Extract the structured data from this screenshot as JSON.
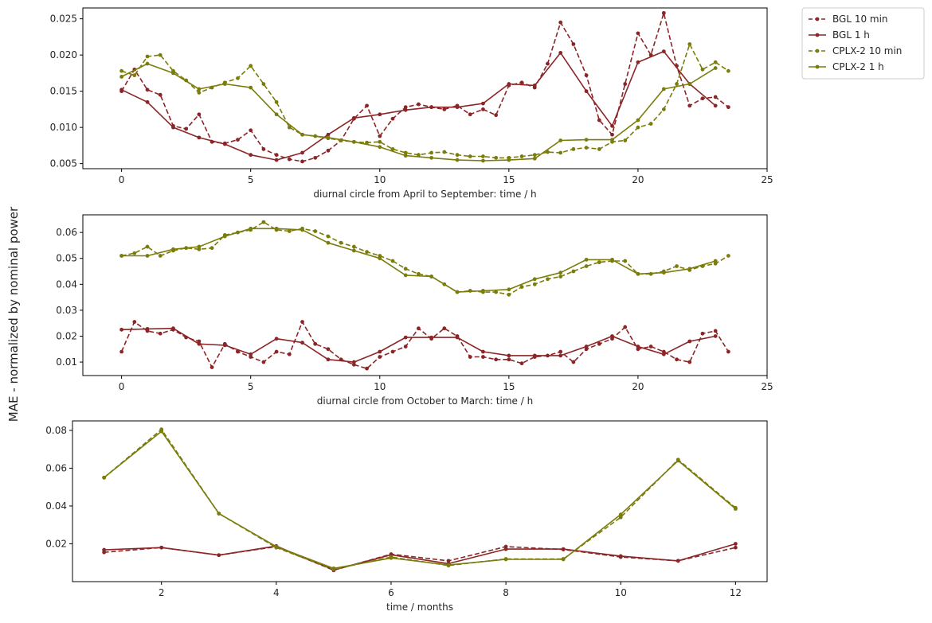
{
  "figure": {
    "ylabel": "MAE - normalized by nominal power",
    "colors": {
      "bgl": "#8b2527",
      "cplx": "#7a7c0b",
      "axis": "#000000",
      "text": "#262626"
    }
  },
  "legend": {
    "entries": [
      {
        "label": "BGL 10 min",
        "series": "bgl",
        "style": "dashed"
      },
      {
        "label": "BGL 1 h",
        "series": "bgl",
        "style": "solid"
      },
      {
        "label": "CPLX-2 10 min",
        "series": "cplx",
        "style": "dashed"
      },
      {
        "label": "CPLX-2 1 h",
        "series": "cplx",
        "style": "solid"
      }
    ]
  },
  "chart_data": [
    {
      "type": "line",
      "title": "",
      "xlabel": "diurnal circle from April to September: time / h",
      "ylabel": "",
      "xlim": [
        -1.5,
        25
      ],
      "ylim": [
        0.0043,
        0.0265
      ],
      "xticks": [
        0,
        5,
        10,
        15,
        20,
        25
      ],
      "yticks": [
        0.005,
        0.01,
        0.015,
        0.02,
        0.025
      ],
      "ytick_labels": [
        "0.005",
        "0.010",
        "0.015",
        "0.020",
        "0.025"
      ],
      "series": [
        {
          "name": "BGL 10 min",
          "color": "bgl",
          "style": "dashed",
          "x": [
            0,
            0.5,
            1,
            1.5,
            2,
            2.5,
            3,
            3.5,
            4,
            4.5,
            5,
            5.5,
            6,
            6.5,
            7,
            7.5,
            8,
            8.5,
            9,
            9.5,
            10,
            10.5,
            11,
            11.5,
            12,
            12.5,
            13,
            13.5,
            14,
            14.5,
            15,
            15.5,
            16,
            16.5,
            17,
            17.5,
            18,
            18.5,
            19,
            19.5,
            20,
            20.5,
            21,
            21.5,
            22,
            22.5,
            23,
            23.5
          ],
          "y": [
            0.015,
            0.018,
            0.0152,
            0.0145,
            0.0102,
            0.0098,
            0.0118,
            0.008,
            0.0078,
            0.0083,
            0.0096,
            0.007,
            0.0062,
            0.0056,
            0.0053,
            0.0058,
            0.0068,
            0.0082,
            0.0112,
            0.013,
            0.0088,
            0.0112,
            0.0128,
            0.0132,
            0.0128,
            0.0125,
            0.013,
            0.0118,
            0.0125,
            0.0117,
            0.0158,
            0.0162,
            0.0155,
            0.0188,
            0.0245,
            0.0215,
            0.0172,
            0.011,
            0.009,
            0.016,
            0.023,
            0.02,
            0.0258,
            0.0185,
            0.013,
            0.014,
            0.0142,
            0.0128
          ]
        },
        {
          "name": "BGL 1 h",
          "color": "bgl",
          "style": "solid",
          "x": [
            0,
            1,
            2,
            3,
            4,
            5,
            6,
            7,
            8,
            9,
            10,
            11,
            12,
            13,
            14,
            15,
            16,
            17,
            18,
            19,
            20,
            21,
            22,
            23
          ],
          "y": [
            0.0152,
            0.0135,
            0.01,
            0.0086,
            0.0077,
            0.0062,
            0.0055,
            0.0065,
            0.009,
            0.0113,
            0.0118,
            0.0124,
            0.0128,
            0.0128,
            0.0133,
            0.016,
            0.0158,
            0.0203,
            0.015,
            0.0102,
            0.019,
            0.0205,
            0.016,
            0.013
          ]
        },
        {
          "name": "CPLX-2 10 min",
          "color": "cplx",
          "style": "dashed",
          "x": [
            0,
            0.5,
            1,
            1.5,
            2,
            2.5,
            3,
            3.5,
            4,
            4.5,
            5,
            5.5,
            6,
            6.5,
            7,
            7.5,
            8,
            8.5,
            9,
            9.5,
            10,
            10.5,
            11,
            11.5,
            12,
            12.5,
            13,
            13.5,
            14,
            14.5,
            15,
            15.5,
            16,
            16.5,
            17,
            17.5,
            18,
            18.5,
            19,
            19.5,
            20,
            20.5,
            21,
            21.5,
            22,
            22.5,
            23,
            23.5
          ],
          "y": [
            0.0178,
            0.0172,
            0.0198,
            0.02,
            0.0178,
            0.0165,
            0.0148,
            0.0155,
            0.0162,
            0.0168,
            0.0185,
            0.016,
            0.0135,
            0.01,
            0.009,
            0.0088,
            0.0085,
            0.0082,
            0.008,
            0.0079,
            0.008,
            0.007,
            0.0065,
            0.0062,
            0.0065,
            0.0066,
            0.0062,
            0.006,
            0.006,
            0.0058,
            0.0058,
            0.006,
            0.0062,
            0.0066,
            0.0065,
            0.007,
            0.0072,
            0.007,
            0.008,
            0.0082,
            0.01,
            0.0105,
            0.0125,
            0.016,
            0.0215,
            0.018,
            0.019,
            0.0178
          ]
        },
        {
          "name": "CPLX-2 1 h",
          "color": "cplx",
          "style": "solid",
          "x": [
            0,
            1,
            2,
            3,
            4,
            5,
            6,
            7,
            8,
            9,
            10,
            11,
            12,
            13,
            14,
            15,
            16,
            17,
            18,
            19,
            20,
            21,
            22,
            23
          ],
          "y": [
            0.017,
            0.0188,
            0.0175,
            0.0153,
            0.016,
            0.0155,
            0.0118,
            0.009,
            0.0086,
            0.008,
            0.0073,
            0.0061,
            0.0058,
            0.0055,
            0.0054,
            0.0055,
            0.0057,
            0.0082,
            0.0083,
            0.0083,
            0.011,
            0.0153,
            0.016,
            0.0182
          ]
        }
      ]
    },
    {
      "type": "line",
      "title": "",
      "xlabel": "diurnal circle from October to March: time / h",
      "ylabel": "",
      "xlim": [
        -1.5,
        25
      ],
      "ylim": [
        0.0048,
        0.0668
      ],
      "xticks": [
        0,
        5,
        10,
        15,
        20,
        25
      ],
      "yticks": [
        0.01,
        0.02,
        0.03,
        0.04,
        0.05,
        0.06
      ],
      "ytick_labels": [
        "0.01",
        "0.02",
        "0.03",
        "0.04",
        "0.05",
        "0.06"
      ],
      "series": [
        {
          "name": "BGL 10 min",
          "color": "bgl",
          "style": "dashed",
          "x": [
            0,
            0.5,
            1,
            1.5,
            2,
            2.5,
            3,
            3.5,
            4,
            4.5,
            5,
            5.5,
            6,
            6.5,
            7,
            7.5,
            8,
            8.5,
            9,
            9.5,
            10,
            10.5,
            11,
            11.5,
            12,
            12.5,
            13,
            13.5,
            14,
            14.5,
            15,
            15.5,
            16,
            16.5,
            17,
            17.5,
            18,
            18.5,
            19,
            19.5,
            20,
            20.5,
            21,
            21.5,
            22,
            22.5,
            23,
            23.5
          ],
          "y": [
            0.014,
            0.0255,
            0.022,
            0.021,
            0.0225,
            0.0195,
            0.018,
            0.008,
            0.017,
            0.014,
            0.012,
            0.01,
            0.014,
            0.013,
            0.0255,
            0.017,
            0.015,
            0.011,
            0.009,
            0.0075,
            0.012,
            0.014,
            0.016,
            0.023,
            0.019,
            0.023,
            0.02,
            0.012,
            0.012,
            0.011,
            0.011,
            0.0095,
            0.012,
            0.0125,
            0.014,
            0.01,
            0.015,
            0.017,
            0.019,
            0.0235,
            0.015,
            0.016,
            0.014,
            0.011,
            0.01,
            0.021,
            0.022,
            0.014
          ]
        },
        {
          "name": "BGL 1 h",
          "color": "bgl",
          "style": "solid",
          "x": [
            0,
            1,
            2,
            3,
            4,
            5,
            6,
            7,
            8,
            9,
            10,
            11,
            12,
            13,
            14,
            15,
            16,
            17,
            18,
            19,
            20,
            21,
            22,
            23
          ],
          "y": [
            0.0225,
            0.0228,
            0.023,
            0.017,
            0.0165,
            0.013,
            0.019,
            0.0175,
            0.011,
            0.01,
            0.014,
            0.0195,
            0.0195,
            0.0195,
            0.014,
            0.0125,
            0.0125,
            0.0125,
            0.016,
            0.02,
            0.016,
            0.013,
            0.018,
            0.02
          ]
        },
        {
          "name": "CPLX-2 10 min",
          "color": "cplx",
          "style": "dashed",
          "x": [
            0,
            0.5,
            1,
            1.5,
            2,
            2.5,
            3,
            3.5,
            4,
            4.5,
            5,
            5.5,
            6,
            6.5,
            7,
            7.5,
            8,
            8.5,
            9,
            9.5,
            10,
            10.5,
            11,
            11.5,
            12,
            12.5,
            13,
            13.5,
            14,
            14.5,
            15,
            15.5,
            16,
            16.5,
            17,
            17.5,
            18,
            18.5,
            19,
            19.5,
            20,
            20.5,
            21,
            21.5,
            22,
            22.5,
            23,
            23.5
          ],
          "y": [
            0.051,
            0.052,
            0.0545,
            0.051,
            0.053,
            0.054,
            0.0535,
            0.054,
            0.059,
            0.06,
            0.061,
            0.064,
            0.061,
            0.0605,
            0.0615,
            0.0605,
            0.0585,
            0.056,
            0.0545,
            0.0525,
            0.051,
            0.049,
            0.046,
            0.044,
            0.043,
            0.04,
            0.037,
            0.0375,
            0.037,
            0.037,
            0.036,
            0.039,
            0.04,
            0.042,
            0.043,
            0.045,
            0.047,
            0.0485,
            0.049,
            0.049,
            0.044,
            0.044,
            0.045,
            0.047,
            0.0455,
            0.047,
            0.048,
            0.051
          ]
        },
        {
          "name": "CPLX-2 1 h",
          "color": "cplx",
          "style": "solid",
          "x": [
            0,
            1,
            2,
            3,
            4,
            5,
            6,
            7,
            8,
            9,
            10,
            11,
            12,
            13,
            14,
            15,
            16,
            17,
            18,
            19,
            20,
            21,
            22,
            23
          ],
          "y": [
            0.051,
            0.051,
            0.0535,
            0.0545,
            0.0585,
            0.0615,
            0.0615,
            0.061,
            0.056,
            0.053,
            0.05,
            0.0435,
            0.043,
            0.037,
            0.0375,
            0.038,
            0.042,
            0.0445,
            0.0495,
            0.0495,
            0.044,
            0.0445,
            0.046,
            0.049
          ]
        }
      ]
    },
    {
      "type": "line",
      "title": "",
      "xlabel": "time / months",
      "ylabel": "",
      "xlim": [
        0.45,
        12.55
      ],
      "ylim": [
        0.0,
        0.085
      ],
      "xticks": [
        2,
        4,
        6,
        8,
        10,
        12
      ],
      "yticks": [
        0.02,
        0.04,
        0.06,
        0.08
      ],
      "ytick_labels": [
        "0.02",
        "0.04",
        "0.06",
        "0.08"
      ],
      "series": [
        {
          "name": "BGL 10 min",
          "color": "bgl",
          "style": "dashed",
          "x": [
            1,
            2,
            3,
            4,
            5,
            6,
            7,
            8,
            9,
            10,
            11,
            12
          ],
          "y": [
            0.0155,
            0.018,
            0.014,
            0.0185,
            0.006,
            0.0145,
            0.011,
            0.0185,
            0.017,
            0.013,
            0.011,
            0.018
          ]
        },
        {
          "name": "BGL 1 h",
          "color": "bgl",
          "style": "solid",
          "x": [
            1,
            2,
            3,
            4,
            5,
            6,
            7,
            8,
            9,
            10,
            11,
            12
          ],
          "y": [
            0.0168,
            0.018,
            0.014,
            0.0188,
            0.0062,
            0.0142,
            0.0095,
            0.0172,
            0.0172,
            0.0135,
            0.011,
            0.02
          ]
        },
        {
          "name": "CPLX-2 10 min",
          "color": "cplx",
          "style": "dashed",
          "x": [
            1,
            2,
            3,
            4,
            5,
            6,
            7,
            8,
            9,
            10,
            11,
            12
          ],
          "y": [
            0.055,
            0.0805,
            0.036,
            0.018,
            0.0065,
            0.013,
            0.0085,
            0.012,
            0.012,
            0.034,
            0.0645,
            0.039
          ]
        },
        {
          "name": "CPLX-2 1 h",
          "color": "cplx",
          "style": "solid",
          "x": [
            1,
            2,
            3,
            4,
            5,
            6,
            7,
            8,
            9,
            10,
            11,
            12
          ],
          "y": [
            0.055,
            0.0795,
            0.036,
            0.0185,
            0.007,
            0.0125,
            0.0088,
            0.0118,
            0.0118,
            0.0355,
            0.064,
            0.0385
          ]
        }
      ]
    }
  ]
}
